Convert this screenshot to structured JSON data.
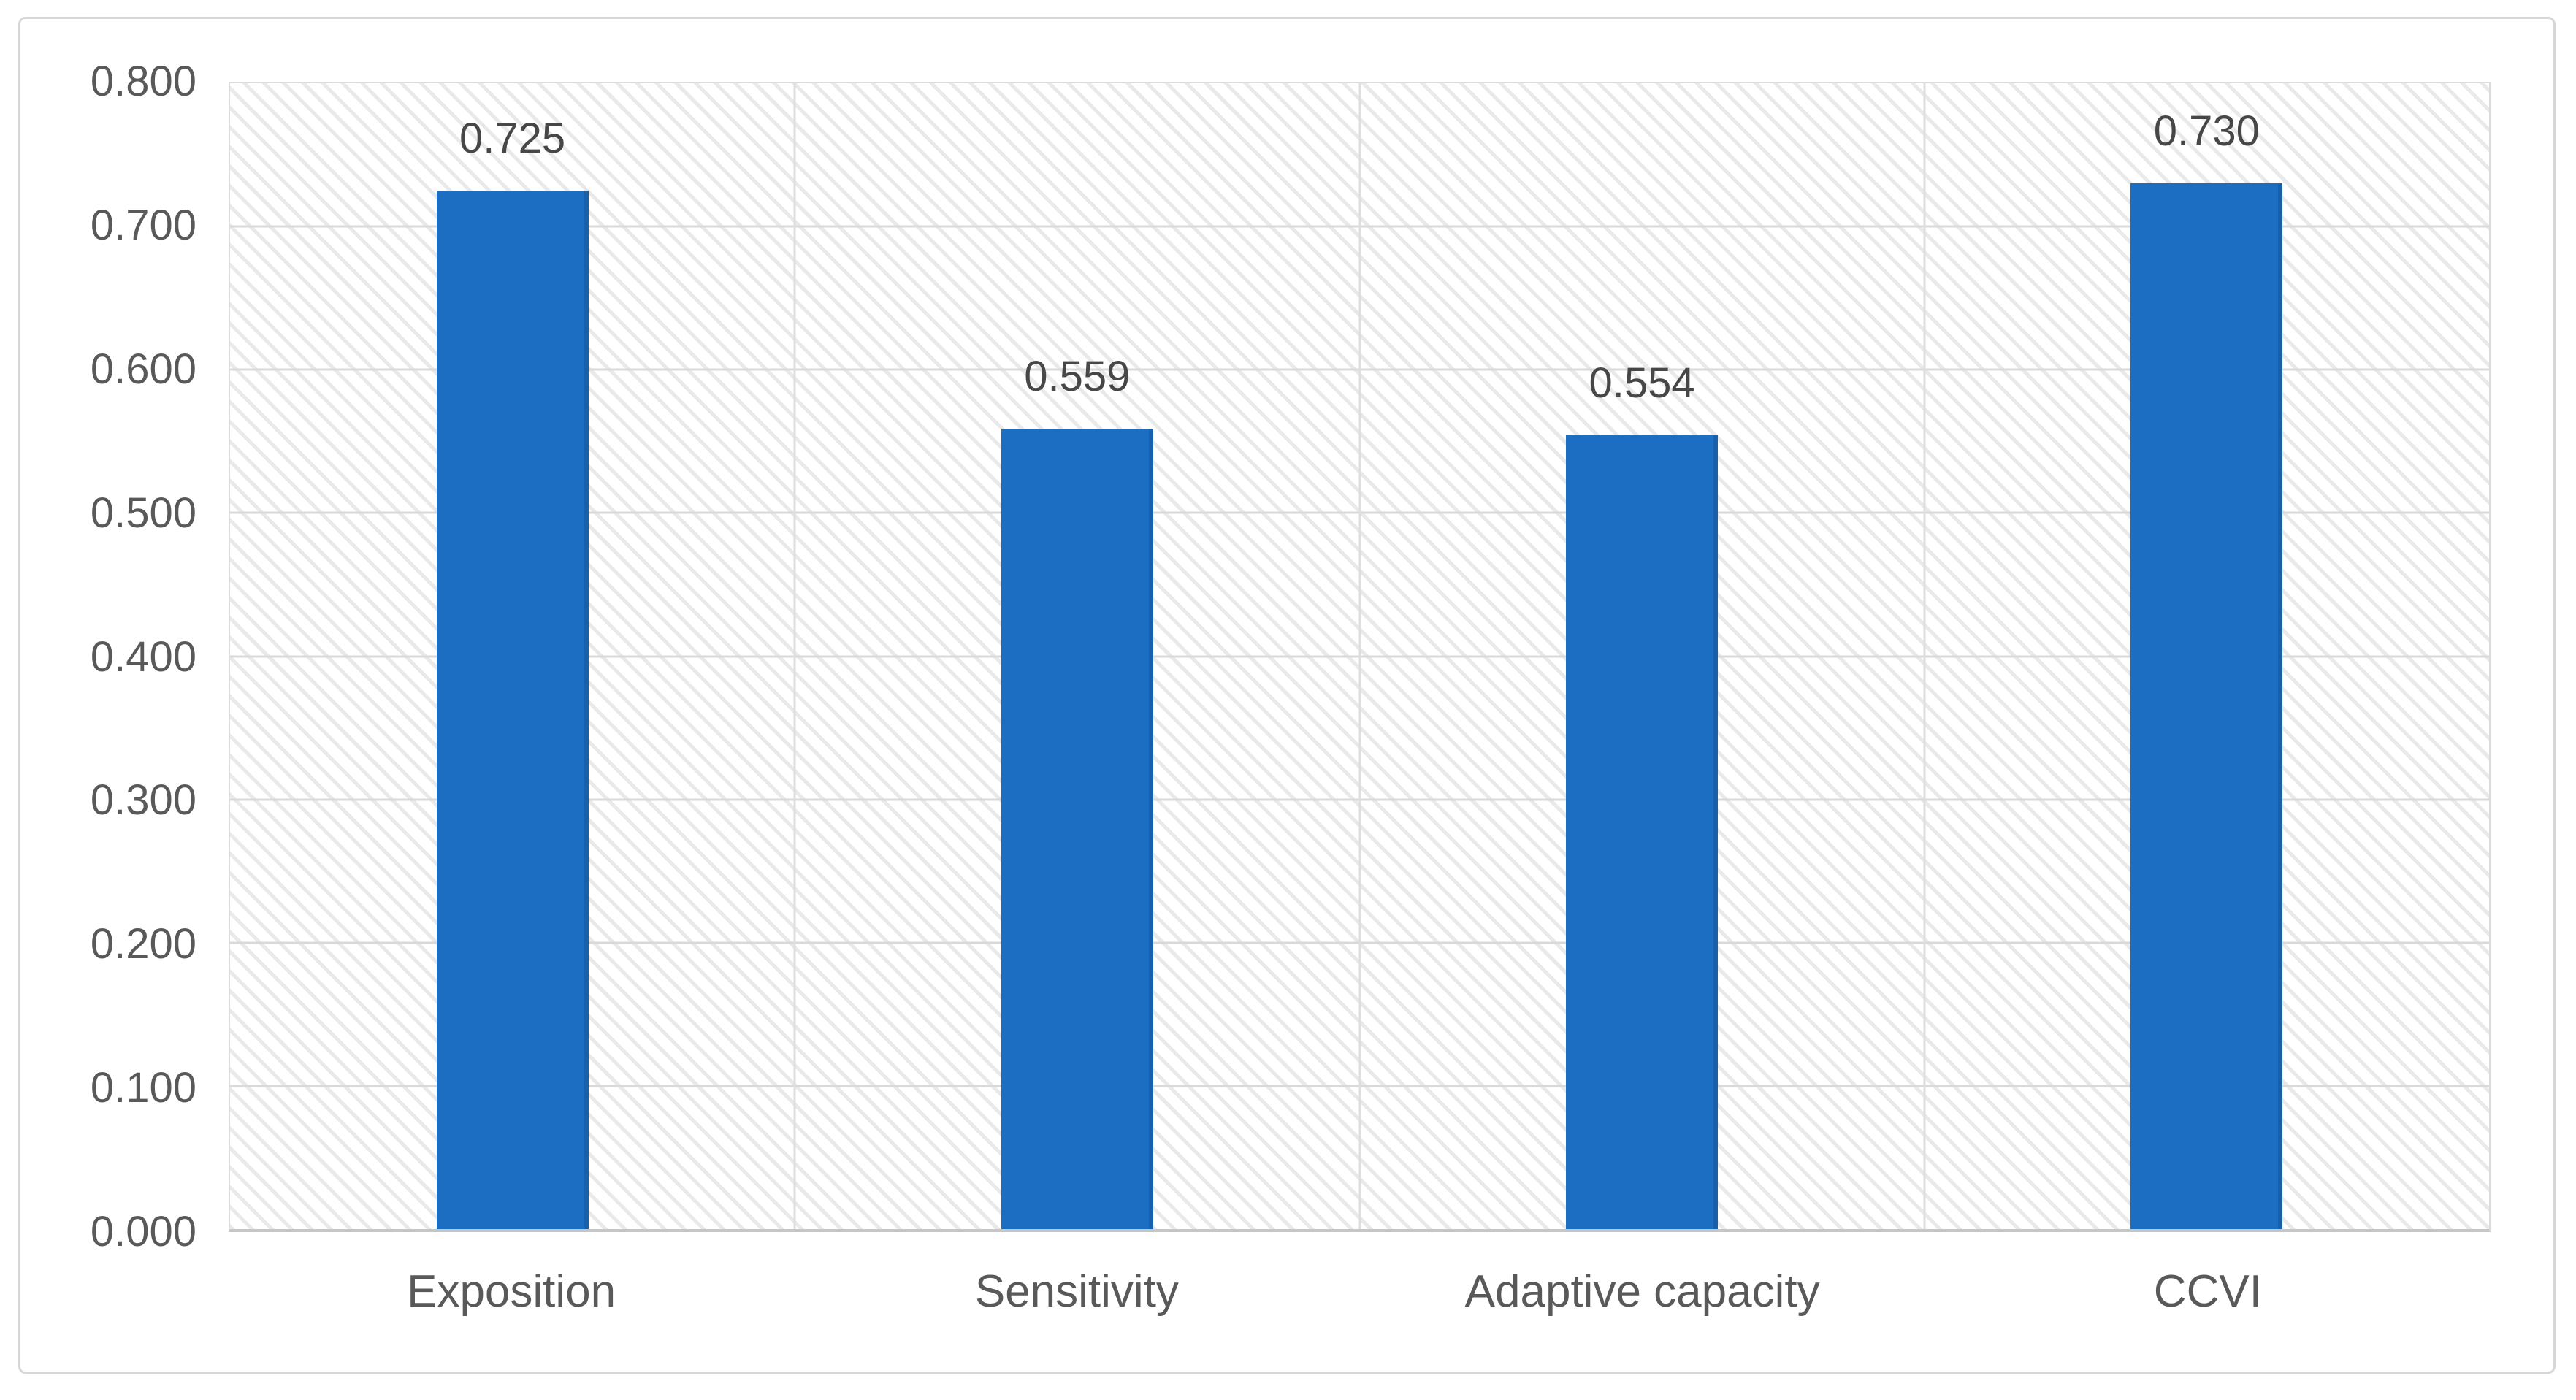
{
  "chart_data": {
    "type": "bar",
    "title": "",
    "categories": [
      "Exposition",
      "Sensitivity",
      "Adaptive capacity",
      "CCVI"
    ],
    "values": [
      0.725,
      0.559,
      0.554,
      0.73
    ],
    "data_labels": [
      "0.725",
      "0.559",
      "0.554",
      "0.730"
    ],
    "xlabel": "",
    "ylabel": "",
    "ylim": [
      0,
      0.8
    ],
    "y_tick_labels": [
      "0.000",
      "0.100",
      "0.200",
      "0.300",
      "0.400",
      "0.500",
      "0.600",
      "0.700",
      "0.800"
    ],
    "legend": "none",
    "grid": {
      "horizontal": true,
      "vertical_category_boundaries": true
    },
    "bar_color": "#1c6ec3",
    "plot_background": "white with light gray downward-diagonal hatch pattern"
  },
  "colors": {
    "bar": "#1c6ec3",
    "axis_text": "#595959",
    "data_label_text": "#474747",
    "gridline": "#d9d9d9",
    "card_border": "#d7d7d7"
  }
}
